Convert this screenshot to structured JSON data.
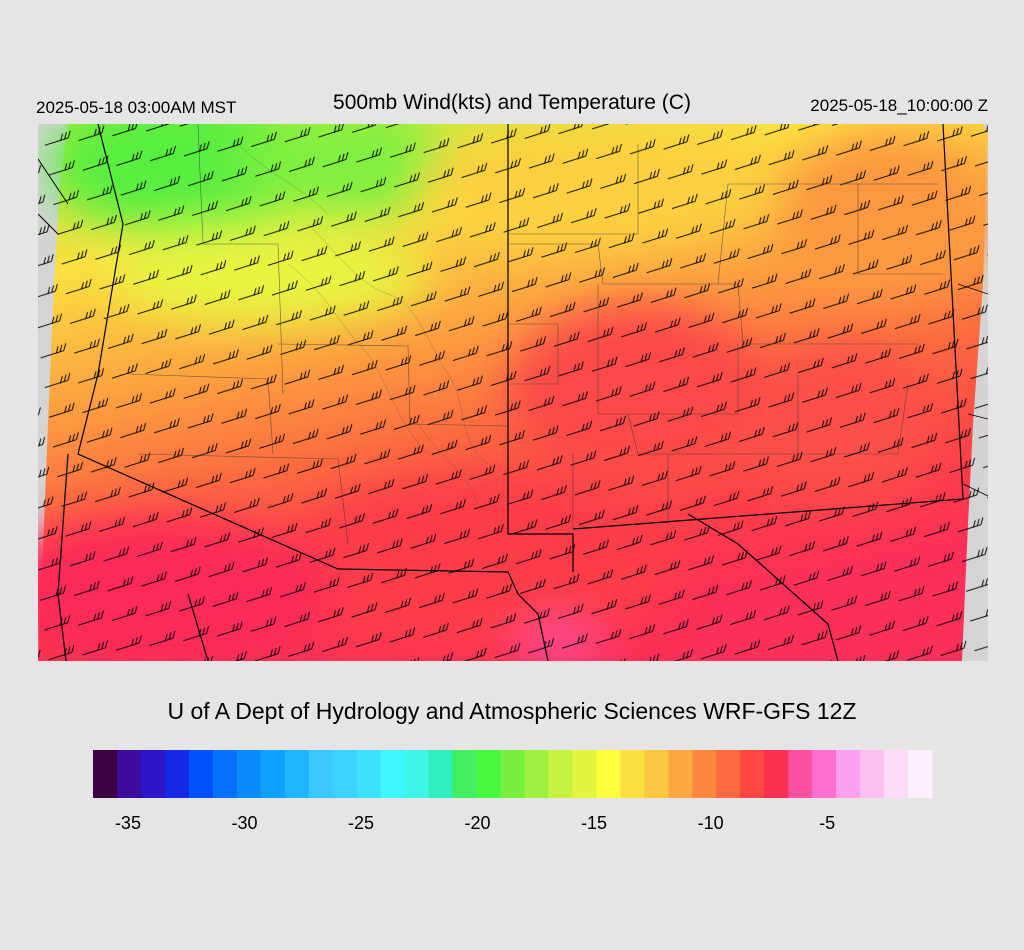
{
  "header": {
    "local_time": "2025-05-18 03:00AM MST",
    "title": "500mb Wind(kts) and Temperature (C)",
    "valid_time": "2025-05-18_10:00:00 Z"
  },
  "credit": "U of A Dept of Hydrology and Atmospheric Sciences WRF-GFS 12Z",
  "colorbar": {
    "ticks": [
      {
        "value": -35,
        "label": "-35"
      },
      {
        "value": -30,
        "label": "-30"
      },
      {
        "value": -25,
        "label": "-25"
      },
      {
        "value": -20,
        "label": "-20"
      },
      {
        "value": -15,
        "label": "-15"
      },
      {
        "value": -10,
        "label": "-10"
      },
      {
        "value": -5,
        "label": "-5"
      }
    ],
    "min": -36,
    "max": -1,
    "step": 1,
    "colors": [
      "#3a0040",
      "#3c0a9c",
      "#2c14c8",
      "#1428e6",
      "#0050ff",
      "#0870ff",
      "#0a8cff",
      "#10a0ff",
      "#20b4ff",
      "#3cc8ff",
      "#3cd2ff",
      "#3ce2ff",
      "#40f8ff",
      "#40f4e8",
      "#30eec0",
      "#40ee60",
      "#48f840",
      "#78f040",
      "#a0f040",
      "#c8f040",
      "#e0f440",
      "#ffff40",
      "#fce040",
      "#fcc840",
      "#fca840",
      "#fc8840",
      "#fc6840",
      "#fc4840",
      "#fc3050",
      "#fc50a0",
      "#fc70d0",
      "#fca0f0",
      "#fcc0f0",
      "#fcdcf8",
      "#fcf0fc"
    ]
  }
}
